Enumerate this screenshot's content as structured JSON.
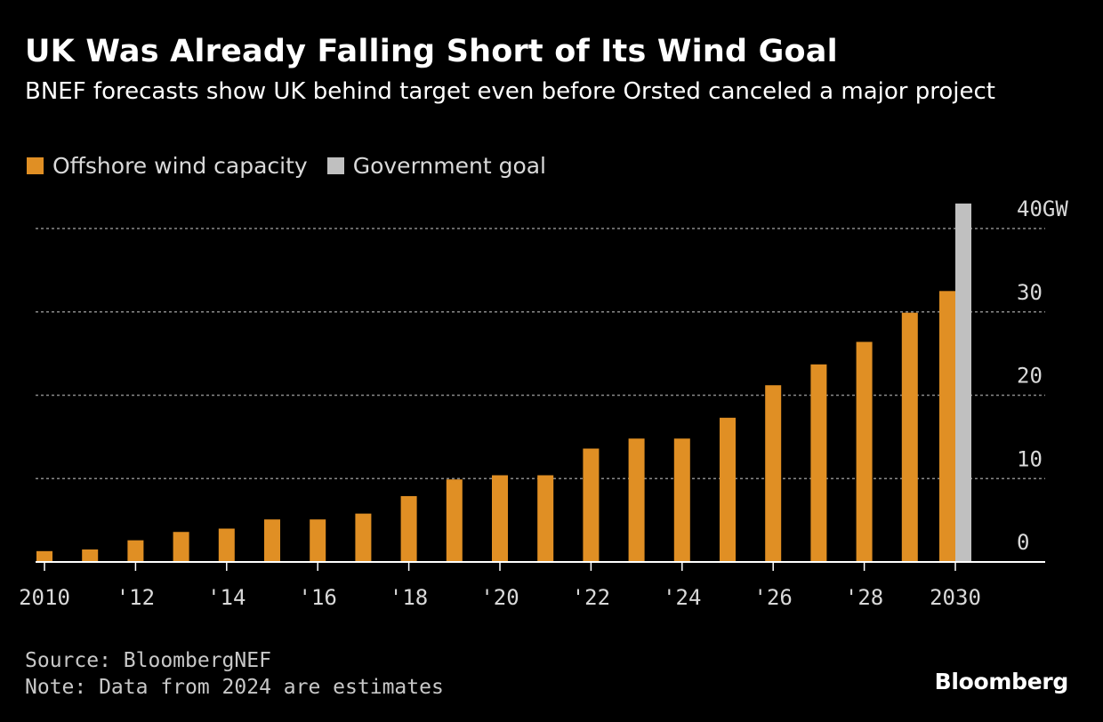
{
  "header": {
    "title": "UK Was Already Falling Short of Its Wind Goal",
    "subtitle": "BNEF forecasts show UK behind target even before Orsted canceled a major project"
  },
  "legend": {
    "items": [
      {
        "label": "Offshore wind capacity",
        "color": "#e08f24"
      },
      {
        "label": "Government goal",
        "color": "#c0c0c0"
      }
    ]
  },
  "footer": {
    "source": "Source: BloombergNEF",
    "note": "Note: Data from 2024 are estimates",
    "brand": "Bloomberg"
  },
  "colors": {
    "background": "#000000",
    "capacity_bar": "#e08f24",
    "goal_bar": "#c0c0c0",
    "gridline": "#8a8a8a",
    "tick_text": "#d9d9d9"
  },
  "chart_data": {
    "type": "bar",
    "title": "UK Was Already Falling Short of Its Wind Goal",
    "subtitle": "BNEF forecasts show UK behind target even before Orsted canceled a major project",
    "xlabel": "",
    "ylabel": "",
    "unit": "GW",
    "y_axis_side": "right",
    "ylim": [
      0,
      40
    ],
    "y_ticks": [
      0,
      10,
      20,
      30,
      40
    ],
    "y_tick_labels": [
      "0",
      "10",
      "20",
      "30",
      "40GW"
    ],
    "grid": true,
    "legend_position": "top-left",
    "categories": [
      "2010",
      "2011",
      "2012",
      "2013",
      "2014",
      "2015",
      "2016",
      "2017",
      "2018",
      "2019",
      "2020",
      "2021",
      "2022",
      "2023",
      "2024",
      "2025",
      "2026",
      "2027",
      "2028",
      "2029",
      "2030"
    ],
    "x_tick_labels": [
      {
        "category": "2010",
        "label": "2010"
      },
      {
        "category": "2012",
        "label": "'12"
      },
      {
        "category": "2014",
        "label": "'14"
      },
      {
        "category": "2016",
        "label": "'16"
      },
      {
        "category": "2018",
        "label": "'18"
      },
      {
        "category": "2020",
        "label": "'20"
      },
      {
        "category": "2022",
        "label": "'22"
      },
      {
        "category": "2024",
        "label": "'24"
      },
      {
        "category": "2026",
        "label": "'26"
      },
      {
        "category": "2028",
        "label": "'28"
      },
      {
        "category": "2030",
        "label": "2030"
      }
    ],
    "series": [
      {
        "name": "Offshore wind capacity",
        "color": "#e08f24",
        "values": [
          1.3,
          1.5,
          2.6,
          3.6,
          4.0,
          5.1,
          5.1,
          5.8,
          7.9,
          9.9,
          10.4,
          10.4,
          13.6,
          14.8,
          14.8,
          17.3,
          21.2,
          23.7,
          26.4,
          29.9,
          32.5
        ]
      },
      {
        "name": "Government goal",
        "color": "#c0c0c0",
        "values": [
          null,
          null,
          null,
          null,
          null,
          null,
          null,
          null,
          null,
          null,
          null,
          null,
          null,
          null,
          null,
          null,
          null,
          null,
          null,
          null,
          43.0
        ]
      }
    ]
  }
}
